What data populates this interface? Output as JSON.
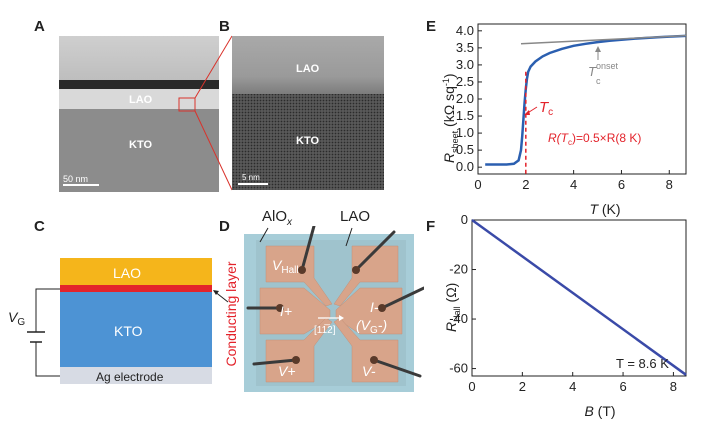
{
  "panels": {
    "A": "A",
    "B": "B",
    "C": "C",
    "D": "D",
    "E": "E",
    "F": "F"
  },
  "panel_a": {
    "lao": "LAO",
    "kto": "KTO",
    "scale": "50 nm"
  },
  "panel_b": {
    "lao": "LAO",
    "kto": "KTO",
    "scale": "5 nm"
  },
  "panel_c": {
    "lao": "LAO",
    "kto": "KTO",
    "vg": "V",
    "vg_sub": "G",
    "electrode": "Ag electrode",
    "conducting": "Conducting layer"
  },
  "panel_d": {
    "aiox": "AlO",
    "aiox_sub": "x",
    "lao": "LAO",
    "vhall": "V",
    "vhall_sub": "Hall",
    "iplus": "I+",
    "iminus": "I-",
    "vg": "(V",
    "vg_sub": "G",
    "vg_end": "-)",
    "vplus": "V+",
    "vminus": "V-",
    "direction": "[11̅2]"
  },
  "chart_data": [
    {
      "type": "line",
      "panel": "E",
      "xlabel": "T (K)",
      "ylabel": "R_sheet (kΩ sq⁻¹)",
      "xlim": [
        0,
        8.7
      ],
      "ylim": [
        -0.2,
        4.2
      ],
      "xticks": [
        0,
        2,
        4,
        6,
        8
      ],
      "yticks": [
        0.0,
        0.5,
        1.0,
        1.5,
        2.0,
        2.5,
        3.0,
        3.5,
        4.0
      ],
      "series": [
        {
          "color": "#2b5fb0",
          "x": [
            0.3,
            0.8,
            1.2,
            1.5,
            1.7,
            1.8,
            1.85,
            1.9,
            1.95,
            2.0,
            2.05,
            2.1,
            2.2,
            2.4,
            2.7,
            3.0,
            3.5,
            4.0,
            4.5,
            5.0,
            5.5,
            6.0,
            6.5,
            7.0,
            7.5,
            8.0,
            8.7
          ],
          "y": [
            0.08,
            0.08,
            0.08,
            0.1,
            0.2,
            0.5,
            0.9,
            1.4,
            1.9,
            2.3,
            2.6,
            2.8,
            2.95,
            3.1,
            3.25,
            3.35,
            3.47,
            3.56,
            3.62,
            3.67,
            3.71,
            3.74,
            3.77,
            3.79,
            3.81,
            3.83,
            3.85
          ]
        },
        {
          "color": "#888888",
          "x": [
            1.8,
            8.7
          ],
          "y": [
            3.62,
            3.86
          ]
        }
      ],
      "tc": 2.0,
      "tonset": 5.2,
      "annotations": {
        "tc": "T",
        "tc_sub": "c",
        "tonset": "T",
        "tonset_sup": "onset",
        "tonset_sub": "c",
        "relation": "R(T",
        "relation_sub": "c",
        "relation_end": ")=0.5×R(8 K)"
      }
    },
    {
      "type": "line",
      "panel": "F",
      "xlabel": "B (T)",
      "ylabel": "R_Hall (Ω)",
      "xlim": [
        0,
        8.5
      ],
      "ylim": [
        -63,
        0
      ],
      "xticks": [
        0,
        2,
        4,
        6,
        8
      ],
      "yticks": [
        0,
        -20,
        -40,
        -60
      ],
      "series": [
        {
          "color": "#3a4aa8",
          "x": [
            0,
            8.5
          ],
          "y": [
            0,
            -62.5
          ]
        }
      ],
      "annotation": "T = 8.6 K"
    }
  ]
}
